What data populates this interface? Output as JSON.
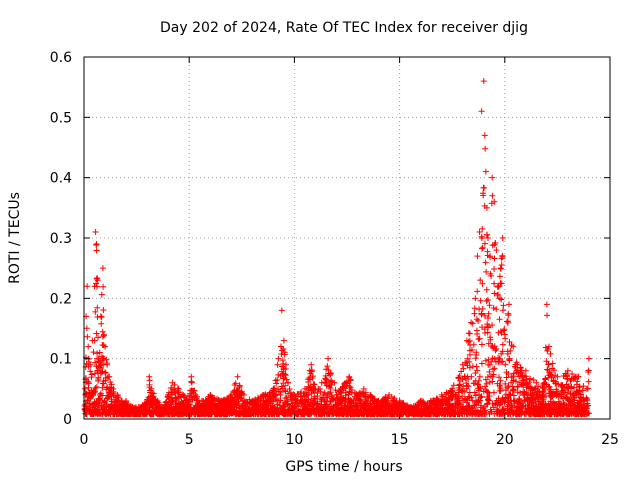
{
  "chart_data": {
    "type": "scatter",
    "title": "Day 202 of 2024, Rate Of TEC Index for receiver djig",
    "xlabel": "GPS time / hours",
    "ylabel": "ROTI / TECUs",
    "xlim": [
      0,
      25
    ],
    "ylim": [
      0,
      0.6
    ],
    "xticks": [
      "0",
      "5",
      "10",
      "15",
      "20",
      "25"
    ],
    "yticks": [
      "0",
      "0.1",
      "0.2",
      "0.3",
      "0.4",
      "0.5",
      "0.6"
    ],
    "grid": true,
    "marker": "plus",
    "color": "#ff0000",
    "series": [
      {
        "name": "",
        "x": [
          0.05,
          0.1,
          0.15,
          0.2,
          0.3,
          0.4,
          0.5,
          0.55,
          0.6,
          0.65,
          0.7,
          0.8,
          0.9,
          1.0,
          1.1,
          1.2,
          1.4,
          1.6,
          1.8,
          2.0,
          2.3,
          2.6,
          3.0,
          3.1,
          3.2,
          3.5,
          3.8,
          4.0,
          4.2,
          4.5,
          5.0,
          5.1,
          5.3,
          5.6,
          6.0,
          6.5,
          7.0,
          7.3,
          7.6,
          8.0,
          8.5,
          9.0,
          9.2,
          9.4,
          9.5,
          9.6,
          9.7,
          10.0,
          10.5,
          10.8,
          11.0,
          11.3,
          11.6,
          11.9,
          12.0,
          12.2,
          12.6,
          13.0,
          13.3,
          13.6,
          14.0,
          14.5,
          15.0,
          15.5,
          16.0,
          16.5,
          17.0,
          17.5,
          18.0,
          18.2,
          18.4,
          18.6,
          18.7,
          18.8,
          18.9,
          19.0,
          19.05,
          19.1,
          19.15,
          19.2,
          19.3,
          19.4,
          19.5,
          19.6,
          19.7,
          19.8,
          19.9,
          20.0,
          20.2,
          20.4,
          20.6,
          21.0,
          21.5,
          21.9,
          22.0,
          22.1,
          22.5,
          23.0,
          23.5,
          23.9,
          24.0
        ],
        "y": [
          0.05,
          0.17,
          0.22,
          0.12,
          0.09,
          0.13,
          0.22,
          0.31,
          0.29,
          0.23,
          0.1,
          0.17,
          0.25,
          0.12,
          0.09,
          0.07,
          0.05,
          0.04,
          0.03,
          0.03,
          0.02,
          0.02,
          0.03,
          0.07,
          0.05,
          0.03,
          0.02,
          0.04,
          0.06,
          0.05,
          0.03,
          0.07,
          0.04,
          0.03,
          0.04,
          0.03,
          0.04,
          0.07,
          0.04,
          0.03,
          0.04,
          0.05,
          0.09,
          0.18,
          0.13,
          0.09,
          0.06,
          0.04,
          0.05,
          0.09,
          0.05,
          0.06,
          0.1,
          0.06,
          0.04,
          0.05,
          0.07,
          0.04,
          0.05,
          0.04,
          0.03,
          0.04,
          0.03,
          0.02,
          0.03,
          0.03,
          0.04,
          0.05,
          0.09,
          0.13,
          0.16,
          0.2,
          0.27,
          0.31,
          0.51,
          0.56,
          0.47,
          0.41,
          0.35,
          0.3,
          0.27,
          0.4,
          0.36,
          0.28,
          0.22,
          0.25,
          0.3,
          0.14,
          0.19,
          0.12,
          0.09,
          0.08,
          0.06,
          0.06,
          0.19,
          0.12,
          0.07,
          0.08,
          0.07,
          0.05,
          0.1
        ]
      }
    ]
  }
}
